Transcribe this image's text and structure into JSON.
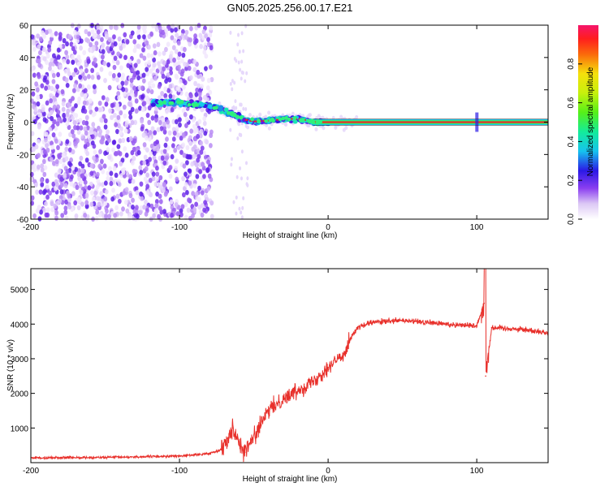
{
  "title": "GN05.2025.256.00.17.E21",
  "chart_data": [
    {
      "type": "heatmap",
      "name": "spectrogram",
      "xlabel": "Height of straight line (km)",
      "ylabel": "Frequency (Hz)",
      "xlim": [
        -200,
        148
      ],
      "ylim": [
        -60,
        60
      ],
      "xticks": [
        -200,
        -100,
        0,
        100
      ],
      "yticks": [
        -60,
        -40,
        -20,
        0,
        20,
        40,
        60
      ],
      "colorbar": {
        "label": "Normalized spectral amplitude",
        "ticks": [
          "0.0",
          "0.2",
          "0.4",
          "0.6",
          "0.8"
        ],
        "tick_values": [
          0.0,
          0.2,
          0.4,
          0.6,
          0.8
        ],
        "range": [
          0,
          1
        ]
      },
      "ridge": {
        "description": "dominant frequency vs height",
        "x": [
          -115,
          -100,
          -90,
          -80,
          -75,
          -70,
          -65,
          -60,
          -55,
          -50,
          -40,
          -30,
          -20,
          -15,
          -10,
          -5,
          0,
          50,
          100,
          148
        ],
        "y": [
          12,
          12,
          11,
          10,
          9,
          7,
          5,
          3,
          1,
          0.5,
          1,
          2,
          2,
          1,
          0,
          0,
          0,
          0,
          0,
          0
        ]
      }
    },
    {
      "type": "line",
      "name": "snr",
      "xlabel": "Height of straight line (km)",
      "ylabel": "SNR (10 * v/v)",
      "xlim": [
        -200,
        148
      ],
      "ylim": [
        0,
        5600
      ],
      "xticks": [
        -200,
        -100,
        0,
        100
      ],
      "yticks": [
        1000,
        2000,
        3000,
        4000,
        5000
      ],
      "series": [
        {
          "name": "SNR",
          "color": "#e8302b",
          "x": [
            -200,
            -150,
            -100,
            -80,
            -72,
            -68,
            -64,
            -60,
            -56,
            -52,
            -48,
            -44,
            -40,
            -30,
            -20,
            -10,
            0,
            10,
            15,
            20,
            30,
            50,
            80,
            100,
            105,
            106,
            110,
            130,
            148
          ],
          "y": [
            140,
            150,
            190,
            260,
            380,
            700,
            1000,
            600,
            300,
            600,
            900,
            1200,
            1500,
            1850,
            2100,
            2350,
            2750,
            3100,
            3600,
            3900,
            4050,
            4100,
            4000,
            3950,
            4600,
            2500,
            3900,
            3850,
            3750
          ]
        }
      ]
    }
  ]
}
